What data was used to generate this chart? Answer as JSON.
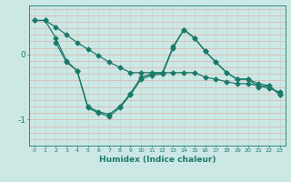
{
  "title": "",
  "xlabel": "Humidex (Indice chaleur)",
  "bg_color": "#cce8e4",
  "line_color": "#1a7a6a",
  "grid_color_h": "#e8a0a0",
  "grid_color_v": "#b0d8d0",
  "xlim": [
    -0.5,
    23.5
  ],
  "ylim": [
    -1.4,
    0.75
  ],
  "yticks": [
    0,
    -1
  ],
  "xticks": [
    0,
    1,
    2,
    3,
    4,
    5,
    6,
    7,
    8,
    9,
    10,
    11,
    12,
    13,
    14,
    15,
    16,
    17,
    18,
    19,
    20,
    21,
    22,
    23
  ],
  "line1_x": [
    0,
    1,
    2,
    3,
    4,
    5,
    6,
    7,
    8,
    9,
    10,
    11,
    12,
    13,
    14,
    15,
    16,
    17,
    18,
    19,
    20,
    21,
    22,
    23
  ],
  "line1_y": [
    0.52,
    0.52,
    0.42,
    0.3,
    0.18,
    0.08,
    -0.02,
    -0.12,
    -0.2,
    -0.28,
    -0.28,
    -0.28,
    -0.28,
    -0.28,
    -0.28,
    -0.28,
    -0.35,
    -0.38,
    -0.42,
    -0.45,
    -0.45,
    -0.48,
    -0.52,
    -0.58
  ],
  "line2_x": [
    0,
    1,
    2,
    3,
    4,
    5,
    6,
    7,
    8,
    9,
    10,
    11,
    12,
    13,
    14,
    15,
    16,
    17,
    18,
    19,
    20,
    21,
    22,
    23
  ],
  "line2_y": [
    0.52,
    0.52,
    0.25,
    -0.1,
    -0.25,
    -0.8,
    -0.88,
    -0.92,
    -0.8,
    -0.6,
    -0.35,
    -0.3,
    -0.28,
    0.12,
    0.38,
    0.25,
    0.05,
    -0.12,
    -0.28,
    -0.38,
    -0.38,
    -0.5,
    -0.48,
    -0.62
  ],
  "line3_x": [
    2,
    3,
    4,
    5,
    6,
    7,
    8,
    9,
    10,
    11,
    12,
    13,
    14,
    15,
    16,
    17,
    18,
    19,
    20,
    21,
    22,
    23
  ],
  "line3_y": [
    0.18,
    -0.12,
    -0.25,
    -0.82,
    -0.9,
    -0.95,
    -0.82,
    -0.62,
    -0.38,
    -0.32,
    -0.3,
    0.1,
    0.38,
    0.25,
    0.05,
    -0.12,
    -0.28,
    -0.38,
    -0.38,
    -0.45,
    -0.48,
    -0.62
  ]
}
